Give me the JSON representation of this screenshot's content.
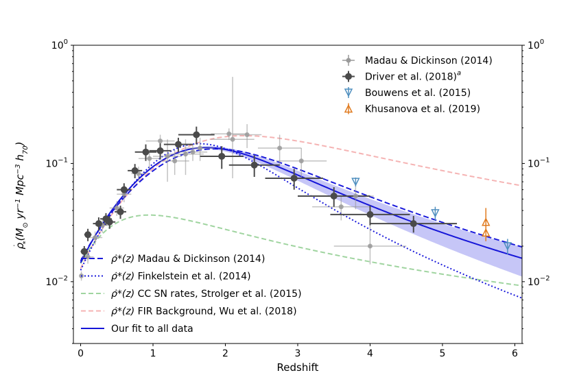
{
  "chart_data": {
    "type": "scatter",
    "title": "",
    "xlabel": "Redshift",
    "ylabel_parts": {
      "rho": "ρ",
      "dot": "˙",
      "sub_star": "*",
      "units_open": "(M",
      "sun": "⊙",
      "yr": " yr",
      "yr_exp": "−1",
      "mpc": " Mpc",
      "mpc_exp": "−3",
      "h": " h",
      "h_sub": "70",
      "units_close": ")"
    },
    "xlim": [
      -0.1,
      6.1
    ],
    "ylim": [
      0.003,
      1.0
    ],
    "yscale": "log",
    "x_ticks": [
      0,
      1,
      2,
      3,
      4,
      5,
      6
    ],
    "x_tick_labels": [
      "0",
      "1",
      "2",
      "3",
      "4",
      "5",
      "6"
    ],
    "y_ticks": [
      0.01,
      0.1,
      1.0
    ],
    "y_tick_labels": [
      {
        "base": "10",
        "exp": "−2"
      },
      {
        "base": "10",
        "exp": "−1"
      },
      {
        "base": "10",
        "exp": "0"
      }
    ],
    "legend_top": {
      "placement": "top-right",
      "entries": [
        {
          "key": "madau",
          "label": "Madau & Dickinson (2014)"
        },
        {
          "key": "driver",
          "label": "Driver et al. (2018)",
          "sup": "a"
        },
        {
          "key": "bouwens",
          "label": "Bouwens et al. (2015)"
        },
        {
          "key": "khusanova",
          "label": "Khusanova et al. (2019)"
        }
      ]
    },
    "legend_bottom": {
      "placement": "bottom-left",
      "entries": [
        {
          "key": "md_curve",
          "math": "ρ̇*(z)",
          "label": " Madau & Dickinson (2014)"
        },
        {
          "key": "fink_curve",
          "math": "ρ̇*(z)",
          "label": "  Finkelstein et al. (2014)"
        },
        {
          "key": "strolger_curve",
          "math": "ρ̇*(z)",
          "label": " CC SN rates, Strolger et al. (2015)"
        },
        {
          "key": "wu_curve",
          "math": "ρ̇*(z)",
          "label": " FIR Background, Wu et al. (2018)"
        },
        {
          "key": "fit_curve",
          "math": "",
          "label": "Our fit to all data"
        }
      ]
    },
    "colors": {
      "madau": "#9a9a9a",
      "driver": "#4a4a4a",
      "bouwens": "#4f8fbf",
      "khusanova": "#e07b20",
      "md_curve": "#1a1adb",
      "fink_curve": "#1a1adb",
      "strolger_curve": "#9fd49f",
      "wu_curve": "#f5b3b3",
      "fit_curve": "#1515d8",
      "band": "#8080ee"
    },
    "series": [
      {
        "name": "Madau & Dickinson (2014)",
        "key": "madau",
        "marker": "circle",
        "points": [
          {
            "x": 0.01,
            "y": 0.0112,
            "xerr": [
              0.01,
              0.01
            ],
            "yerr": [
              0.001,
              0.001
            ]
          },
          {
            "x": 0.1,
            "y": 0.0162,
            "xerr": [
              0.08,
              0.08
            ],
            "yerr": [
              0.002,
              0.002
            ]
          },
          {
            "x": 0.2,
            "y": 0.0236,
            "xerr": [
              0.1,
              0.1
            ],
            "yerr": [
              0.003,
              0.003
            ]
          },
          {
            "x": 0.3,
            "y": 0.03,
            "xerr": [
              0.1,
              0.1
            ],
            "yerr": [
              0.004,
              0.004
            ]
          },
          {
            "x": 0.5,
            "y": 0.042,
            "xerr": [
              0.1,
              0.1
            ],
            "yerr": [
              0.006,
              0.006
            ]
          },
          {
            "x": 0.6,
            "y": 0.055,
            "xerr": [
              0.1,
              0.1
            ],
            "yerr": [
              0.008,
              0.008
            ]
          },
          {
            "x": 0.8,
            "y": 0.082,
            "xerr": [
              0.1,
              0.1
            ],
            "yerr": [
              0.012,
              0.012
            ]
          },
          {
            "x": 0.95,
            "y": 0.11,
            "xerr": [
              0.15,
              0.15
            ],
            "yerr": [
              0.02,
              0.02
            ]
          },
          {
            "x": 1.1,
            "y": 0.155,
            "xerr": [
              0.2,
              0.2
            ],
            "yerr": [
              0.02,
              0.02
            ]
          },
          {
            "x": 1.2,
            "y": 0.115,
            "xerr": [
              0.2,
              0.2
            ],
            "yerr": [
              0.045,
              0.045
            ]
          },
          {
            "x": 1.3,
            "y": 0.105,
            "xerr": [
              0.2,
              0.2
            ],
            "yerr": [
              0.025,
              0.025
            ]
          },
          {
            "x": 1.45,
            "y": 0.12,
            "xerr": [
              0.25,
              0.25
            ],
            "yerr": [
              0.04,
              0.04
            ]
          },
          {
            "x": 1.55,
            "y": 0.125,
            "xerr": [
              0.2,
              0.2
            ],
            "yerr": [
              0.02,
              0.02
            ]
          },
          {
            "x": 1.65,
            "y": 0.135,
            "xerr": [
              0.2,
              0.2
            ],
            "yerr": [
              0.03,
              0.03
            ]
          },
          {
            "x": 2.05,
            "y": 0.178,
            "xerr": [
              0.25,
              0.25
            ],
            "yerr": [
              0.02,
              0.02
            ]
          },
          {
            "x": 2.1,
            "y": 0.16,
            "xerr": [
              0.3,
              0.3
            ],
            "yerr": [
              0.085,
              0.38
            ]
          },
          {
            "x": 2.3,
            "y": 0.175,
            "xerr": [
              0.2,
              0.2
            ],
            "yerr": [
              0.04,
              0.04
            ]
          },
          {
            "x": 2.75,
            "y": 0.135,
            "xerr": [
              0.3,
              0.3
            ],
            "yerr": [
              0.04,
              0.04
            ]
          },
          {
            "x": 3.05,
            "y": 0.105,
            "xerr": [
              0.35,
              0.35
            ],
            "yerr": [
              0.03,
              0.03
            ]
          },
          {
            "x": 3.6,
            "y": 0.043,
            "xerr": [
              0.4,
              0.4
            ],
            "yerr": [
              0.01,
              0.01
            ]
          },
          {
            "x": 3.8,
            "y": 0.053,
            "xerr": [
              0.25,
              0.25
            ],
            "yerr": [
              0.012,
              0.012
            ]
          },
          {
            "x": 4.0,
            "y": 0.02,
            "xerr": [
              0.5,
              0.5
            ],
            "yerr": [
              0.006,
              0.012
            ]
          }
        ]
      },
      {
        "name": "Driver et al. (2018)",
        "key": "driver",
        "marker": "circle",
        "points": [
          {
            "x": 0.05,
            "y": 0.018,
            "xerr": [
              0.05,
              0.05
            ],
            "yerr": [
              0.002,
              0.002
            ]
          },
          {
            "x": 0.1,
            "y": 0.025,
            "xerr": [
              0.05,
              0.05
            ],
            "yerr": [
              0.003,
              0.003
            ]
          },
          {
            "x": 0.25,
            "y": 0.031,
            "xerr": [
              0.08,
              0.08
            ],
            "yerr": [
              0.004,
              0.004
            ]
          },
          {
            "x": 0.35,
            "y": 0.034,
            "xerr": [
              0.08,
              0.08
            ],
            "yerr": [
              0.004,
              0.004
            ]
          },
          {
            "x": 0.4,
            "y": 0.032,
            "xerr": [
              0.08,
              0.08
            ],
            "yerr": [
              0.004,
              0.004
            ]
          },
          {
            "x": 0.55,
            "y": 0.039,
            "xerr": [
              0.08,
              0.08
            ],
            "yerr": [
              0.005,
              0.005
            ]
          },
          {
            "x": 0.6,
            "y": 0.06,
            "xerr": [
              0.1,
              0.1
            ],
            "yerr": [
              0.008,
              0.008
            ]
          },
          {
            "x": 0.75,
            "y": 0.087,
            "xerr": [
              0.1,
              0.1
            ],
            "yerr": [
              0.012,
              0.012
            ]
          },
          {
            "x": 0.9,
            "y": 0.125,
            "xerr": [
              0.15,
              0.15
            ],
            "yerr": [
              0.02,
              0.02
            ]
          },
          {
            "x": 1.1,
            "y": 0.128,
            "xerr": [
              0.15,
              0.15
            ],
            "yerr": [
              0.02,
              0.02
            ]
          },
          {
            "x": 1.35,
            "y": 0.145,
            "xerr": [
              0.2,
              0.2
            ],
            "yerr": [
              0.02,
              0.02
            ]
          },
          {
            "x": 1.6,
            "y": 0.175,
            "xerr": [
              0.25,
              0.25
            ],
            "yerr": [
              0.03,
              0.03
            ]
          },
          {
            "x": 1.95,
            "y": 0.115,
            "xerr": [
              0.3,
              0.3
            ],
            "yerr": [
              0.025,
              0.025
            ]
          },
          {
            "x": 2.4,
            "y": 0.097,
            "xerr": [
              0.35,
              0.35
            ],
            "yerr": [
              0.02,
              0.02
            ]
          },
          {
            "x": 2.95,
            "y": 0.075,
            "xerr": [
              0.4,
              0.4
            ],
            "yerr": [
              0.015,
              0.015
            ]
          },
          {
            "x": 3.5,
            "y": 0.053,
            "xerr": [
              0.5,
              0.5
            ],
            "yerr": [
              0.01,
              0.01
            ]
          },
          {
            "x": 4.0,
            "y": 0.037,
            "xerr": [
              0.55,
              0.55
            ],
            "yerr": [
              0.007,
              0.007
            ]
          },
          {
            "x": 4.6,
            "y": 0.031,
            "xerr": [
              0.6,
              0.6
            ],
            "yerr": [
              0.005,
              0.005
            ]
          }
        ]
      },
      {
        "name": "Bouwens et al. (2015)",
        "key": "bouwens",
        "marker": "triangle-down",
        "points": [
          {
            "x": 3.8,
            "y": 0.07,
            "xerr": [
              0,
              0
            ],
            "yerr": [
              0.006,
              0.006
            ]
          },
          {
            "x": 4.9,
            "y": 0.038,
            "xerr": [
              0,
              0
            ],
            "yerr": [
              0.005,
              0.005
            ]
          },
          {
            "x": 5.9,
            "y": 0.02,
            "xerr": [
              0,
              0
            ],
            "yerr": [
              0.003,
              0.003
            ]
          }
        ]
      },
      {
        "name": "Khusanova et al. (2019)",
        "key": "khusanova",
        "marker": "triangle-up",
        "points": [
          {
            "x": 5.6,
            "y": 0.032,
            "xerr": [
              0,
              0
            ],
            "yerr": [
              0.006,
              0.01
            ]
          },
          {
            "x": 5.6,
            "y": 0.026,
            "xerr": [
              0,
              0
            ],
            "yerr": [
              0.004,
              0.005
            ]
          }
        ]
      }
    ]
  }
}
